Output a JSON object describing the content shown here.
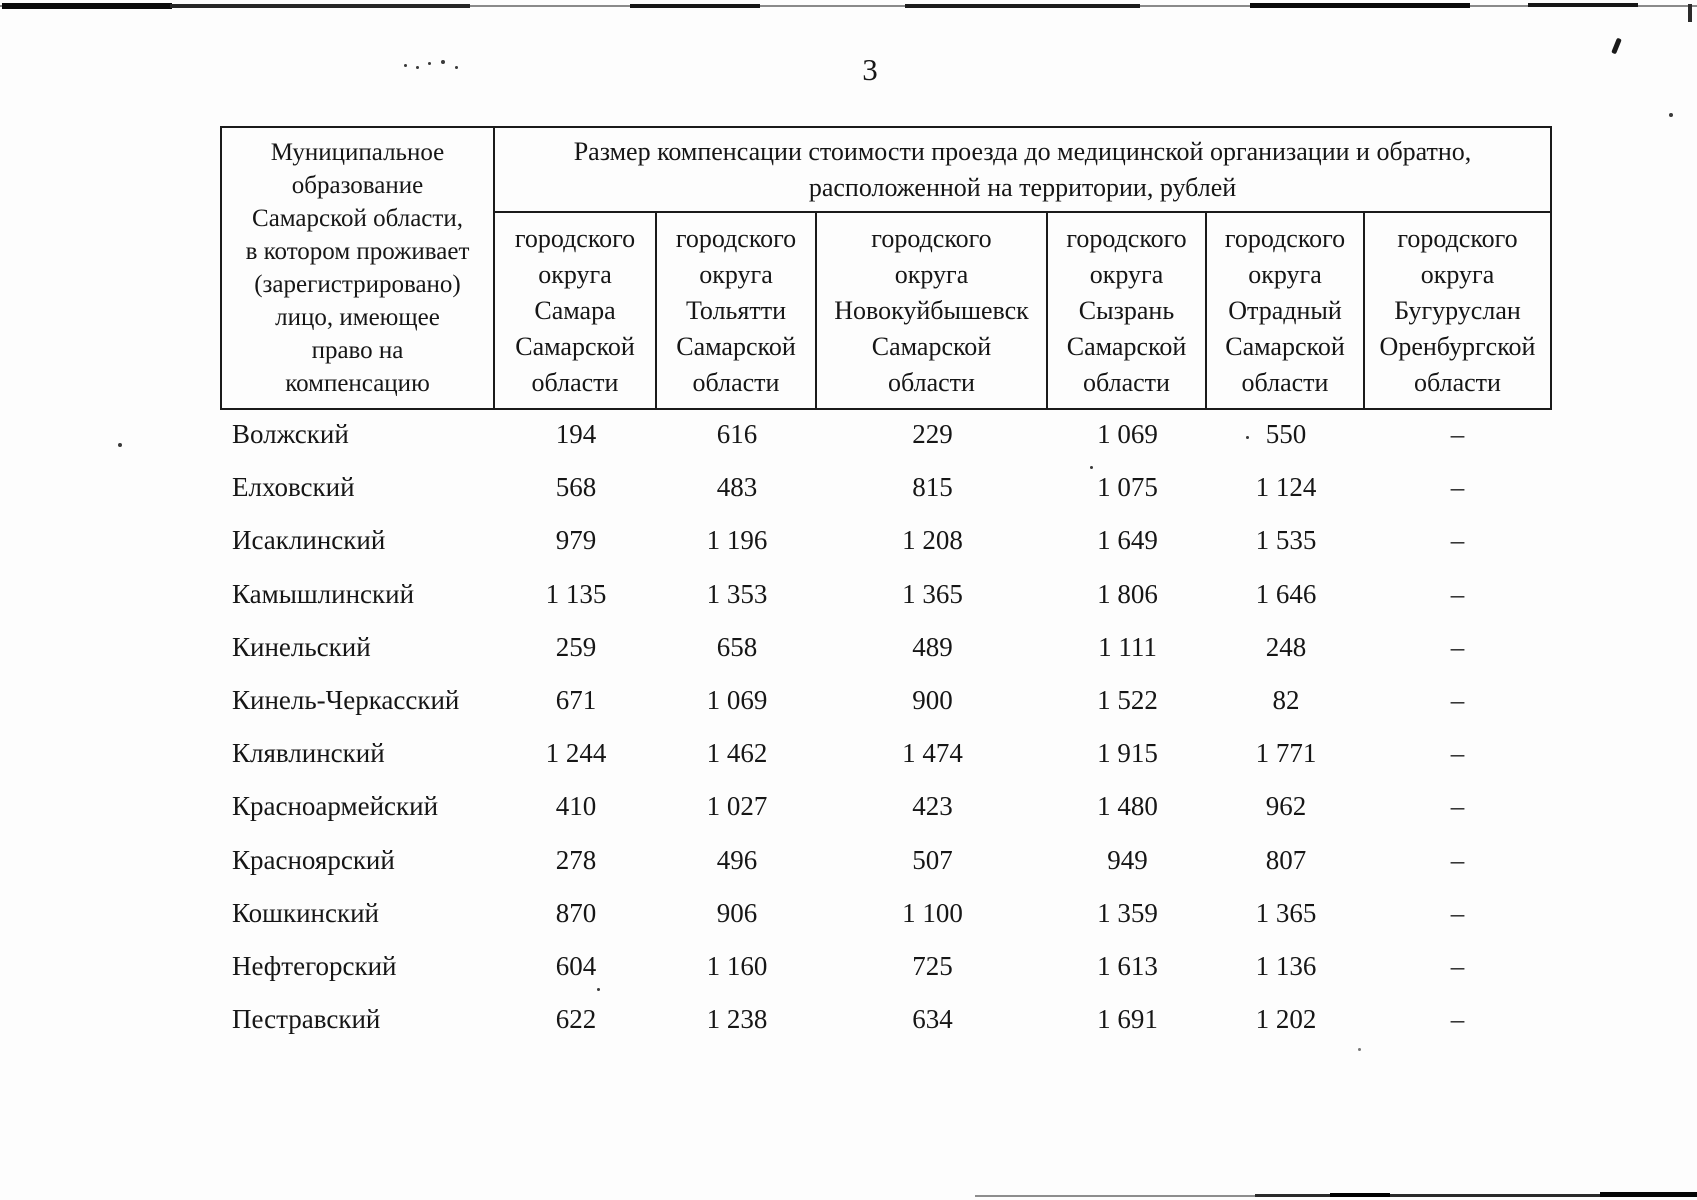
{
  "page": {
    "number": "3"
  },
  "table": {
    "corner_header": "Муниципальное\nобразование\nСамарской области,\nв котором проживает\n(зарегистрировано)\nлицо, имеющее\nправо на\nкомпенсацию",
    "group_header": "Размер компенсации стоимости проезда до медицинской организации и обратно,\nрасположенной на территории, рублей",
    "columns": [
      "городского\nокруга\nСамара\nСамарской\nобласти",
      "городского\nокруга\nТольятти\nСамарской\nобласти",
      "городского\nокруга\nНовокуйбышевск\nСамарской\nобласти",
      "городского\nокруга\nСызрань\nСамарской\nобласти",
      "городского\nокруга\nОтрадный\nСамарской\nобласти",
      "городского\nокруга\nБугуруслан\nОренбургской\nобласти"
    ],
    "rows": [
      {
        "name": "Волжский",
        "values": [
          "194",
          "616",
          "229",
          "1 069",
          "550",
          "–"
        ]
      },
      {
        "name": "Елховский",
        "values": [
          "568",
          "483",
          "815",
          "1 075",
          "1 124",
          "–"
        ]
      },
      {
        "name": "Исаклинский",
        "values": [
          "979",
          "1 196",
          "1 208",
          "1 649",
          "1 535",
          "–"
        ]
      },
      {
        "name": "Камышлинский",
        "values": [
          "1 135",
          "1 353",
          "1 365",
          "1 806",
          "1 646",
          "–"
        ]
      },
      {
        "name": "Кинельский",
        "values": [
          "259",
          "658",
          "489",
          "1 111",
          "248",
          "–"
        ]
      },
      {
        "name": "Кинель-Черкасский",
        "values": [
          "671",
          "1 069",
          "900",
          "1 522",
          "82",
          "–"
        ]
      },
      {
        "name": "Клявлинский",
        "values": [
          "1 244",
          "1 462",
          "1 474",
          "1 915",
          "1 771",
          "–"
        ]
      },
      {
        "name": "Красноармейский",
        "values": [
          "410",
          "1 027",
          "423",
          "1 480",
          "962",
          "–"
        ]
      },
      {
        "name": "Красноярский",
        "values": [
          "278",
          "496",
          "507",
          "949",
          "807",
          "–"
        ]
      },
      {
        "name": "Кошкинский",
        "values": [
          "870",
          "906",
          "1 100",
          "1 359",
          "1 365",
          "–"
        ]
      },
      {
        "name": "Нефтегорский",
        "values": [
          "604",
          "1 160",
          "725",
          "1 613",
          "1 136",
          "–"
        ]
      },
      {
        "name": "Пестравский",
        "values": [
          "622",
          "1 238",
          "634",
          "1 691",
          "1 202",
          "–"
        ]
      }
    ]
  }
}
